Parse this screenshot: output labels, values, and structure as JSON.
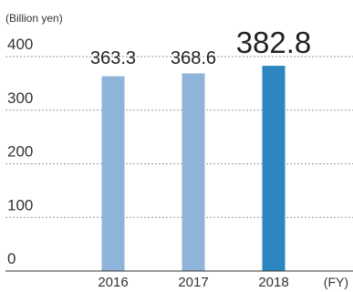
{
  "chart_data": {
    "type": "bar",
    "y_unit_label": "(Billion yen)",
    "x_unit_label": "(FY)",
    "categories": [
      "2016",
      "2017",
      "2018"
    ],
    "values": [
      363.3,
      368.6,
      382.8
    ],
    "value_labels": [
      "363.3",
      "368.6",
      "382.8"
    ],
    "highlight_index": 2,
    "ylim": [
      0,
      400
    ],
    "yticks": [
      0,
      100,
      200,
      300,
      400
    ],
    "ytick_labels": [
      "0",
      "100",
      "200",
      "300",
      "400"
    ],
    "grid": true,
    "colors": {
      "bar": "#8fb4d9",
      "bar_highlight": "#2d86bf",
      "grid": "#9a9a9a",
      "axis": "#333333"
    }
  }
}
